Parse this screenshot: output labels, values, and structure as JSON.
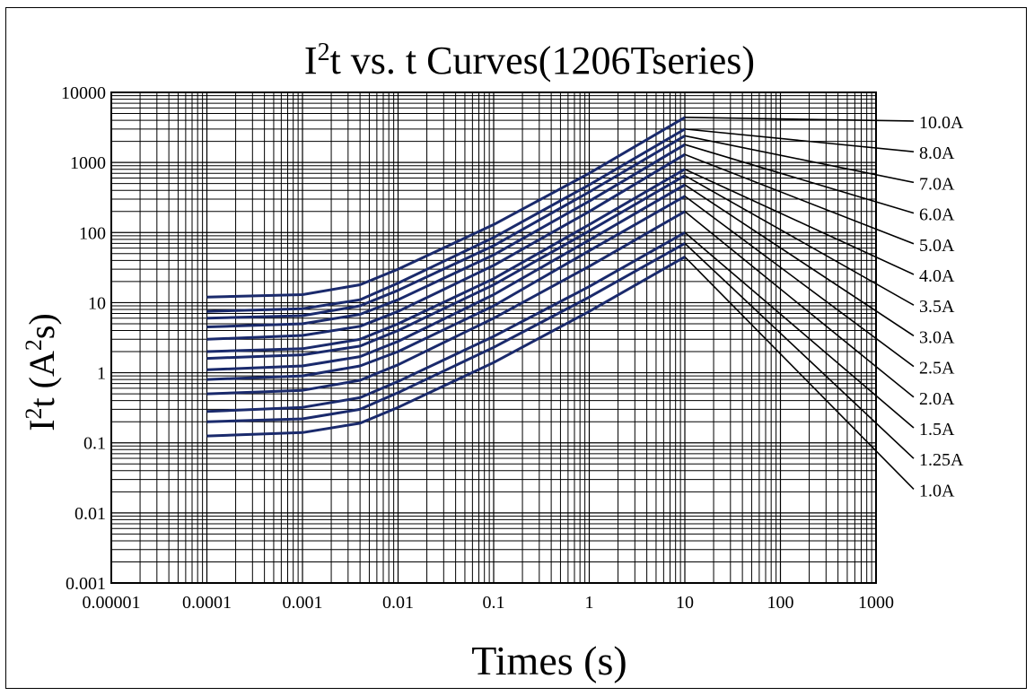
{
  "chart_data": {
    "type": "line",
    "title": {
      "base": "I",
      "sup": "2",
      "rest": "t  vs. t  Curves(1206Tseries)"
    },
    "xlabel": "Times (s)",
    "ylabel": {
      "base": "I",
      "sup": "2",
      "rest": "t (A",
      "sup2": "2",
      "end": "s)"
    },
    "x_scale": "log",
    "y_scale": "log",
    "xlim": [
      1e-05,
      1000
    ],
    "ylim": [
      0.001,
      10000
    ],
    "grid": true,
    "x_ticks": [
      "0.00001",
      "0.0001",
      "0.001",
      "0.01",
      "0.1",
      "1",
      "10",
      "100",
      "1000"
    ],
    "y_ticks": [
      "0.001",
      "0.01",
      "0.1",
      "1",
      "10",
      "100",
      "1000",
      "10000"
    ],
    "line_color": "#1a2a6c",
    "leader_color": "#000000",
    "series": [
      {
        "name": "10.0A",
        "values": [
          [
            0.0001,
            12
          ],
          [
            0.001,
            13
          ],
          [
            0.004,
            18
          ],
          [
            0.01,
            30
          ],
          [
            0.1,
            130
          ],
          [
            1,
            700
          ],
          [
            10,
            4400
          ]
        ]
      },
      {
        "name": "8.0A",
        "values": [
          [
            0.0001,
            7.5
          ],
          [
            0.001,
            8.2
          ],
          [
            0.004,
            11
          ],
          [
            0.01,
            19
          ],
          [
            0.1,
            85
          ],
          [
            1,
            480
          ],
          [
            10,
            3000
          ]
        ]
      },
      {
        "name": "7.0A",
        "values": [
          [
            0.0001,
            6
          ],
          [
            0.001,
            6.5
          ],
          [
            0.004,
            9
          ],
          [
            0.01,
            15
          ],
          [
            0.1,
            65
          ],
          [
            1,
            380
          ],
          [
            10,
            2400
          ]
        ]
      },
      {
        "name": "6.0A",
        "values": [
          [
            0.0001,
            4.5
          ],
          [
            0.001,
            5
          ],
          [
            0.004,
            6.8
          ],
          [
            0.01,
            11
          ],
          [
            0.1,
            48
          ],
          [
            1,
            280
          ],
          [
            10,
            1800
          ]
        ]
      },
      {
        "name": "5.0A",
        "values": [
          [
            0.0001,
            3
          ],
          [
            0.001,
            3.4
          ],
          [
            0.004,
            4.6
          ],
          [
            0.01,
            7.5
          ],
          [
            0.1,
            34
          ],
          [
            1,
            200
          ],
          [
            10,
            1300
          ]
        ]
      },
      {
        "name": "4.0A",
        "values": [
          [
            0.0001,
            2
          ],
          [
            0.001,
            2.2
          ],
          [
            0.004,
            3
          ],
          [
            0.01,
            5
          ],
          [
            0.1,
            22
          ],
          [
            1,
            130
          ],
          [
            10,
            800
          ]
        ]
      },
      {
        "name": "3.5A",
        "values": [
          [
            0.0001,
            1.6
          ],
          [
            0.001,
            1.8
          ],
          [
            0.004,
            2.4
          ],
          [
            0.01,
            4
          ],
          [
            0.1,
            18
          ],
          [
            1,
            105
          ],
          [
            10,
            650
          ]
        ]
      },
      {
        "name": "3.0A",
        "values": [
          [
            0.0001,
            1.1
          ],
          [
            0.001,
            1.25
          ],
          [
            0.004,
            1.7
          ],
          [
            0.01,
            2.8
          ],
          [
            0.1,
            13
          ],
          [
            1,
            78
          ],
          [
            10,
            480
          ]
        ]
      },
      {
        "name": "2.5A",
        "values": [
          [
            0.0001,
            0.8
          ],
          [
            0.001,
            0.9
          ],
          [
            0.004,
            1.25
          ],
          [
            0.01,
            2
          ],
          [
            0.1,
            9
          ],
          [
            1,
            55
          ],
          [
            10,
            330
          ]
        ]
      },
      {
        "name": "2.0A",
        "values": [
          [
            0.0001,
            0.5
          ],
          [
            0.001,
            0.56
          ],
          [
            0.004,
            0.78
          ],
          [
            0.01,
            1.3
          ],
          [
            0.1,
            6
          ],
          [
            1,
            33
          ],
          [
            10,
            200
          ]
        ]
      },
      {
        "name": "1.5A",
        "values": [
          [
            0.0001,
            0.28
          ],
          [
            0.001,
            0.32
          ],
          [
            0.004,
            0.44
          ],
          [
            0.01,
            0.75
          ],
          [
            0.1,
            3.3
          ],
          [
            1,
            17
          ],
          [
            10,
            100
          ]
        ]
      },
      {
        "name": "1.25A",
        "values": [
          [
            0.0001,
            0.2
          ],
          [
            0.001,
            0.22
          ],
          [
            0.004,
            0.3
          ],
          [
            0.01,
            0.52
          ],
          [
            0.1,
            2.3
          ],
          [
            1,
            12
          ],
          [
            10,
            70
          ]
        ]
      },
      {
        "name": "1.0A",
        "values": [
          [
            0.0001,
            0.125
          ],
          [
            0.001,
            0.14
          ],
          [
            0.004,
            0.19
          ],
          [
            0.01,
            0.32
          ],
          [
            0.1,
            1.4
          ],
          [
            1,
            7.5
          ],
          [
            10,
            45
          ]
        ]
      }
    ]
  }
}
